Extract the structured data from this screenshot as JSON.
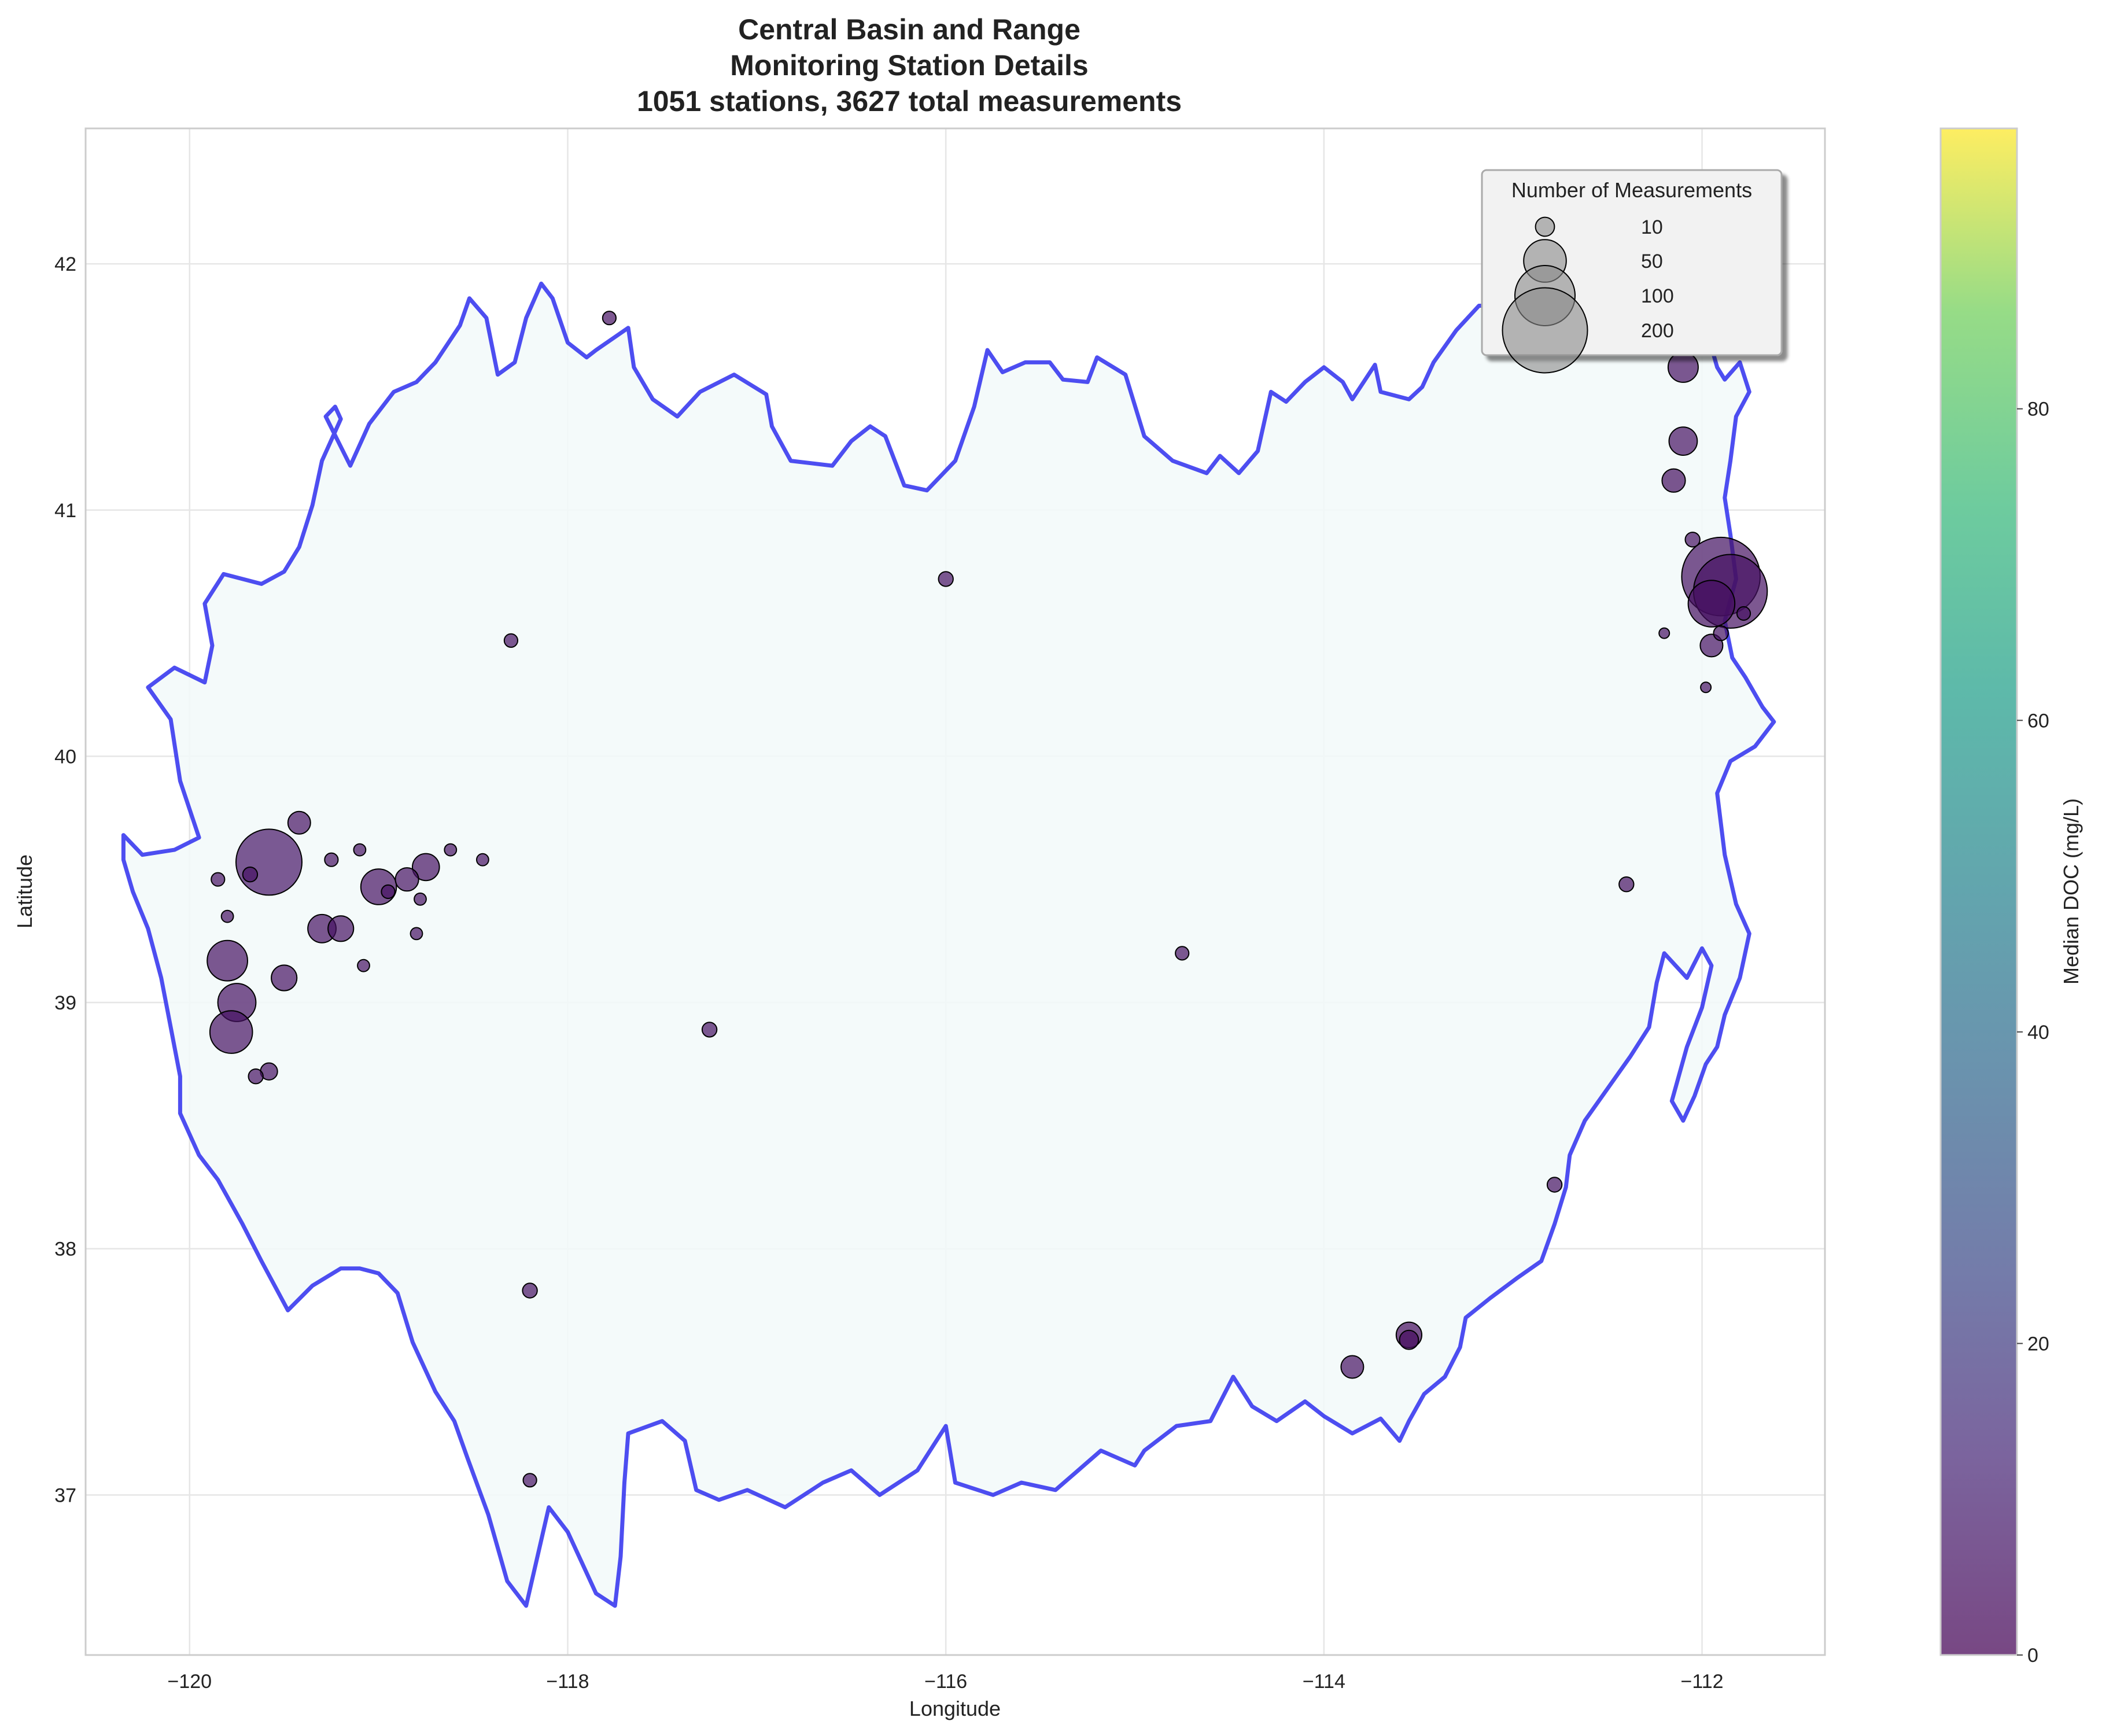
{
  "chart_data": {
    "type": "scatter",
    "title_lines": [
      "Central Basin and Range",
      "Monitoring Station Details",
      "1051 stations, 3627 total measurements"
    ],
    "xlabel": "Longitude",
    "ylabel": "Latitude",
    "xlim": [
      -120.55,
      -111.35
    ],
    "ylim": [
      36.35,
      42.55
    ],
    "x_ticks": [
      -120,
      -118,
      -116,
      -114,
      -112
    ],
    "x_tick_labels": [
      "−120",
      "−118",
      "−116",
      "−114",
      "−112"
    ],
    "y_ticks": [
      37,
      38,
      39,
      40,
      41,
      42
    ],
    "y_tick_labels": [
      "37",
      "38",
      "39",
      "40",
      "41",
      "42"
    ],
    "grid": true,
    "colorbar": {
      "label": "Median DOC (mg/L)",
      "range": [
        0,
        98
      ],
      "ticks": [
        0,
        20,
        40,
        60,
        80
      ],
      "tick_labels": [
        "0",
        "20",
        "40",
        "60",
        "80"
      ],
      "colormap": "viridis"
    },
    "size_legend": {
      "title": "Number of Measurements",
      "placement": "top-right",
      "entries": [
        {
          "label": "10",
          "n": 10
        },
        {
          "label": "50",
          "n": 50
        },
        {
          "label": "100",
          "n": 100
        },
        {
          "label": "200",
          "n": 200
        }
      ]
    },
    "boundary": [
      [
        -120.35,
        39.68
      ],
      [
        -120.25,
        39.6
      ],
      [
        -120.08,
        39.62
      ],
      [
        -119.95,
        39.67
      ],
      [
        -120.05,
        39.9
      ],
      [
        -120.1,
        40.15
      ],
      [
        -120.22,
        40.28
      ],
      [
        -120.08,
        40.36
      ],
      [
        -119.92,
        40.3
      ],
      [
        -119.88,
        40.45
      ],
      [
        -119.92,
        40.62
      ],
      [
        -119.82,
        40.74
      ],
      [
        -119.62,
        40.7
      ],
      [
        -119.5,
        40.75
      ],
      [
        -119.42,
        40.85
      ],
      [
        -119.35,
        41.02
      ],
      [
        -119.3,
        41.2
      ],
      [
        -119.2,
        41.37
      ],
      [
        -119.23,
        41.42
      ],
      [
        -119.28,
        41.38
      ],
      [
        -119.15,
        41.18
      ],
      [
        -119.05,
        41.35
      ],
      [
        -118.92,
        41.48
      ],
      [
        -118.8,
        41.52
      ],
      [
        -118.7,
        41.6
      ],
      [
        -118.57,
        41.75
      ],
      [
        -118.52,
        41.86
      ],
      [
        -118.43,
        41.78
      ],
      [
        -118.37,
        41.55
      ],
      [
        -118.28,
        41.6
      ],
      [
        -118.22,
        41.78
      ],
      [
        -118.14,
        41.92
      ],
      [
        -118.08,
        41.86
      ],
      [
        -118.0,
        41.68
      ],
      [
        -117.9,
        41.62
      ],
      [
        -117.85,
        41.65
      ],
      [
        -117.68,
        41.74
      ],
      [
        -117.65,
        41.58
      ],
      [
        -117.55,
        41.45
      ],
      [
        -117.42,
        41.38
      ],
      [
        -117.3,
        41.48
      ],
      [
        -117.12,
        41.55
      ],
      [
        -116.95,
        41.47
      ],
      [
        -116.92,
        41.34
      ],
      [
        -116.82,
        41.2
      ],
      [
        -116.6,
        41.18
      ],
      [
        -116.5,
        41.28
      ],
      [
        -116.4,
        41.34
      ],
      [
        -116.32,
        41.3
      ],
      [
        -116.22,
        41.1
      ],
      [
        -116.1,
        41.08
      ],
      [
        -115.95,
        41.2
      ],
      [
        -115.85,
        41.42
      ],
      [
        -115.78,
        41.65
      ],
      [
        -115.7,
        41.56
      ],
      [
        -115.58,
        41.6
      ],
      [
        -115.45,
        41.6
      ],
      [
        -115.38,
        41.53
      ],
      [
        -115.25,
        41.52
      ],
      [
        -115.2,
        41.62
      ],
      [
        -115.05,
        41.55
      ],
      [
        -114.95,
        41.3
      ],
      [
        -114.8,
        41.2
      ],
      [
        -114.62,
        41.15
      ],
      [
        -114.55,
        41.22
      ],
      [
        -114.45,
        41.15
      ],
      [
        -114.35,
        41.24
      ],
      [
        -114.28,
        41.48
      ],
      [
        -114.2,
        41.44
      ],
      [
        -114.1,
        41.52
      ],
      [
        -114.0,
        41.58
      ],
      [
        -113.9,
        41.52
      ],
      [
        -113.85,
        41.45
      ],
      [
        -113.73,
        41.59
      ],
      [
        -113.7,
        41.48
      ],
      [
        -113.55,
        41.45
      ],
      [
        -113.48,
        41.5
      ],
      [
        -113.42,
        41.6
      ],
      [
        -113.3,
        41.73
      ],
      [
        -113.18,
        41.83
      ],
      [
        -113.05,
        41.83
      ],
      [
        -112.85,
        41.8
      ],
      [
        -112.6,
        41.72
      ],
      [
        -112.45,
        41.78
      ],
      [
        -112.3,
        41.68
      ],
      [
        -112.2,
        41.72
      ],
      [
        -112.12,
        41.64
      ],
      [
        -112.05,
        41.72
      ],
      [
        -111.95,
        41.66
      ],
      [
        -111.92,
        41.58
      ],
      [
        -111.88,
        41.53
      ],
      [
        -111.8,
        41.6
      ],
      [
        -111.75,
        41.48
      ],
      [
        -111.82,
        41.38
      ],
      [
        -111.85,
        41.2
      ],
      [
        -111.88,
        41.05
      ],
      [
        -111.85,
        40.9
      ],
      [
        -111.82,
        40.72
      ],
      [
        -111.88,
        40.55
      ],
      [
        -111.84,
        40.4
      ],
      [
        -111.77,
        40.32
      ],
      [
        -111.68,
        40.2
      ],
      [
        -111.62,
        40.14
      ],
      [
        -111.72,
        40.04
      ],
      [
        -111.85,
        39.98
      ],
      [
        -111.92,
        39.85
      ],
      [
        -111.88,
        39.6
      ],
      [
        -111.82,
        39.4
      ],
      [
        -111.75,
        39.28
      ],
      [
        -111.8,
        39.1
      ],
      [
        -111.88,
        38.95
      ],
      [
        -111.92,
        38.82
      ],
      [
        -111.98,
        38.75
      ],
      [
        -112.04,
        38.62
      ],
      [
        -112.1,
        38.52
      ],
      [
        -112.16,
        38.6
      ],
      [
        -112.08,
        38.82
      ],
      [
        -112.0,
        38.98
      ],
      [
        -111.95,
        39.15
      ],
      [
        -112.0,
        39.22
      ],
      [
        -112.08,
        39.1
      ],
      [
        -112.2,
        39.2
      ],
      [
        -112.24,
        39.08
      ],
      [
        -112.28,
        38.9
      ],
      [
        -112.38,
        38.78
      ],
      [
        -112.5,
        38.65
      ],
      [
        -112.62,
        38.52
      ],
      [
        -112.7,
        38.38
      ],
      [
        -112.72,
        38.25
      ],
      [
        -112.78,
        38.1
      ],
      [
        -112.85,
        37.95
      ],
      [
        -112.98,
        37.88
      ],
      [
        -113.12,
        37.8
      ],
      [
        -113.25,
        37.72
      ],
      [
        -113.28,
        37.6
      ],
      [
        -113.36,
        37.48
      ],
      [
        -113.47,
        37.41
      ],
      [
        -113.55,
        37.3
      ],
      [
        -113.6,
        37.22
      ],
      [
        -113.7,
        37.31
      ],
      [
        -113.85,
        37.25
      ],
      [
        -114.0,
        37.32
      ],
      [
        -114.1,
        37.38
      ],
      [
        -114.25,
        37.3
      ],
      [
        -114.38,
        37.36
      ],
      [
        -114.48,
        37.48
      ],
      [
        -114.6,
        37.3
      ],
      [
        -114.78,
        37.28
      ],
      [
        -114.95,
        37.18
      ],
      [
        -115.0,
        37.12
      ],
      [
        -115.18,
        37.18
      ],
      [
        -115.3,
        37.1
      ],
      [
        -115.42,
        37.02
      ],
      [
        -115.6,
        37.05
      ],
      [
        -115.75,
        37.0
      ],
      [
        -115.95,
        37.05
      ],
      [
        -116.0,
        37.28
      ],
      [
        -116.15,
        37.1
      ],
      [
        -116.35,
        37.0
      ],
      [
        -116.5,
        37.1
      ],
      [
        -116.65,
        37.05
      ],
      [
        -116.85,
        36.95
      ],
      [
        -117.05,
        37.02
      ],
      [
        -117.2,
        36.98
      ],
      [
        -117.32,
        37.02
      ],
      [
        -117.38,
        37.22
      ],
      [
        -117.5,
        37.3
      ],
      [
        -117.68,
        37.25
      ],
      [
        -117.7,
        37.05
      ],
      [
        -117.72,
        36.75
      ],
      [
        -117.75,
        36.55
      ],
      [
        -117.85,
        36.6
      ],
      [
        -118.0,
        36.85
      ],
      [
        -118.1,
        36.95
      ],
      [
        -118.22,
        36.55
      ],
      [
        -118.32,
        36.65
      ],
      [
        -118.42,
        36.92
      ],
      [
        -118.53,
        37.15
      ],
      [
        -118.6,
        37.3
      ],
      [
        -118.7,
        37.42
      ],
      [
        -118.82,
        37.62
      ],
      [
        -118.9,
        37.82
      ],
      [
        -119.0,
        37.9
      ],
      [
        -119.1,
        37.92
      ],
      [
        -119.2,
        37.92
      ],
      [
        -119.35,
        37.85
      ],
      [
        -119.48,
        37.75
      ],
      [
        -119.62,
        37.95
      ],
      [
        -119.72,
        38.1
      ],
      [
        -119.85,
        38.28
      ],
      [
        -119.95,
        38.38
      ],
      [
        -120.05,
        38.55
      ],
      [
        -120.05,
        38.7
      ],
      [
        -120.1,
        38.9
      ],
      [
        -120.15,
        39.1
      ],
      [
        -120.22,
        39.3
      ],
      [
        -120.3,
        39.45
      ],
      [
        -120.35,
        39.58
      ],
      [
        -120.35,
        39.68
      ]
    ],
    "stations": [
      [
        -119.58,
        39.57,
        120,
        6
      ],
      [
        -111.9,
        40.73,
        170,
        5
      ],
      [
        -111.85,
        40.67,
        150,
        5
      ],
      [
        -111.95,
        40.62,
        60,
        4
      ],
      [
        -119.8,
        39.17,
        45,
        5
      ],
      [
        -119.75,
        39.0,
        40,
        5
      ],
      [
        -119.78,
        38.88,
        50,
        5
      ],
      [
        -119.5,
        39.1,
        18,
        5
      ],
      [
        -119.3,
        39.3,
        22,
        5
      ],
      [
        -119.2,
        39.3,
        18,
        5
      ],
      [
        -119.0,
        39.47,
        35,
        5
      ],
      [
        -118.75,
        39.55,
        20,
        5
      ],
      [
        -118.85,
        39.5,
        15,
        5
      ],
      [
        -119.42,
        39.73,
        14,
        5
      ],
      [
        -112.1,
        41.58,
        25,
        5
      ],
      [
        -112.1,
        41.28,
        22,
        5
      ],
      [
        -112.15,
        41.12,
        15,
        4
      ],
      [
        -111.95,
        40.45,
        14,
        5
      ],
      [
        -113.55,
        37.65,
        18,
        3
      ],
      [
        -113.85,
        37.52,
        14,
        5
      ],
      [
        -113.55,
        37.63,
        10,
        3
      ],
      [
        -119.58,
        38.72,
        8,
        5
      ],
      [
        -119.65,
        38.7,
        6,
        5
      ],
      [
        -112.4,
        39.48,
        6,
        5
      ],
      [
        -112.78,
        38.26,
        6,
        5
      ],
      [
        -117.25,
        38.89,
        6,
        5
      ],
      [
        -118.2,
        37.83,
        6,
        5
      ],
      [
        -116.0,
        40.72,
        6,
        5
      ],
      [
        -118.3,
        40.47,
        5,
        5
      ],
      [
        -117.78,
        41.78,
        5,
        5
      ],
      [
        -114.75,
        39.2,
        5,
        5
      ],
      [
        -118.2,
        37.06,
        5,
        5
      ],
      [
        -112.05,
        40.88,
        6,
        5
      ],
      [
        -118.8,
        39.28,
        4,
        5
      ],
      [
        -118.62,
        39.62,
        4,
        5
      ],
      [
        -118.45,
        39.58,
        4,
        5
      ],
      [
        -119.1,
        39.62,
        4,
        5
      ],
      [
        -119.08,
        39.15,
        4,
        5
      ],
      [
        -111.9,
        40.5,
        6,
        5
      ],
      [
        -111.78,
        40.58,
        5,
        5
      ],
      [
        -119.85,
        39.5,
        5,
        5
      ],
      [
        -119.8,
        39.35,
        4,
        5
      ],
      [
        -119.68,
        39.52,
        6,
        5
      ],
      [
        -119.25,
        39.58,
        5,
        5
      ],
      [
        -118.95,
        39.45,
        5,
        5
      ],
      [
        -118.78,
        39.42,
        4,
        5
      ],
      [
        -112.2,
        40.5,
        3,
        5
      ],
      [
        -111.98,
        40.28,
        3,
        5
      ]
    ]
  }
}
